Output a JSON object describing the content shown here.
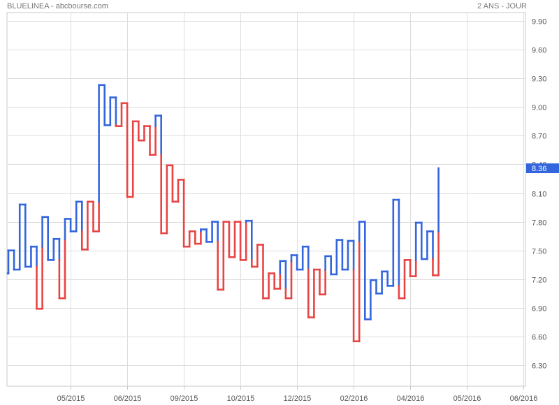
{
  "header": {
    "title": "BLUELINEA - abcbourse.com",
    "period": "2 ANS - JOUR"
  },
  "colors": {
    "up": "#3366dd",
    "down": "#e84444",
    "grid": "#dddddd",
    "frame": "#c8c8c8",
    "label": "#555555",
    "last_price_bg": "#3366dd"
  },
  "chart_data": {
    "type": "line",
    "subtype": "kagi",
    "title": "BLUELINEA - abcbourse.com",
    "subtitle": "2 ANS - JOUR",
    "xlabel": "",
    "ylabel": "",
    "y_axis_side": "right",
    "ylim": [
      6.1,
      10.0
    ],
    "yticks": [
      6.3,
      6.6,
      6.9,
      7.2,
      7.5,
      7.8,
      8.1,
      8.4,
      8.7,
      9.0,
      9.3,
      9.6,
      9.9
    ],
    "ytick_labels": [
      "6.30",
      "6.60",
      "6.90",
      "7.20",
      "7.50",
      "7.80",
      "8.10",
      "8.40",
      "8.70",
      "9.00",
      "9.30",
      "9.60",
      "9.90"
    ],
    "xlim": [
      0,
      92
    ],
    "xticks": [
      {
        "x": 11,
        "label": "05/2015"
      },
      {
        "x": 21,
        "label": "06/2015"
      },
      {
        "x": 31,
        "label": "09/2015"
      },
      {
        "x": 41,
        "label": "10/2015"
      },
      {
        "x": 51,
        "label": "12/2015"
      },
      {
        "x": 61,
        "label": "02/2016"
      },
      {
        "x": 71,
        "label": "04/2016"
      },
      {
        "x": 81,
        "label": "05/2016"
      },
      {
        "x": 91,
        "label": "06/2016"
      }
    ],
    "grid": true,
    "last_price": {
      "value": 8.36,
      "label": "8.36"
    },
    "start_value": 7.26,
    "series": [
      {
        "values": [
          7.5,
          7.3,
          7.98,
          7.33,
          7.54,
          6.89,
          7.85,
          7.4,
          7.62,
          7.0,
          7.83,
          7.7,
          8.01,
          7.51,
          8.01,
          7.7,
          9.23,
          8.81,
          9.1,
          8.8,
          9.04,
          8.06,
          8.85,
          8.65,
          8.8,
          8.5,
          8.91,
          7.68,
          8.39,
          8.01,
          8.24,
          7.54,
          7.7,
          7.57,
          7.72,
          7.59,
          7.8,
          7.09,
          7.8,
          7.43,
          7.8,
          7.4,
          7.81,
          7.33,
          7.56,
          7.0,
          7.26,
          7.1,
          7.39,
          7.0,
          7.45,
          7.3,
          7.54,
          6.8,
          7.3,
          7.04,
          7.44,
          7.25,
          7.61,
          7.3,
          7.6,
          6.55,
          7.8,
          6.78,
          7.19,
          7.05,
          7.28,
          7.13,
          8.03,
          7.0,
          7.4,
          7.23,
          7.79,
          7.41,
          7.7,
          7.24,
          8.36
        ]
      }
    ]
  }
}
